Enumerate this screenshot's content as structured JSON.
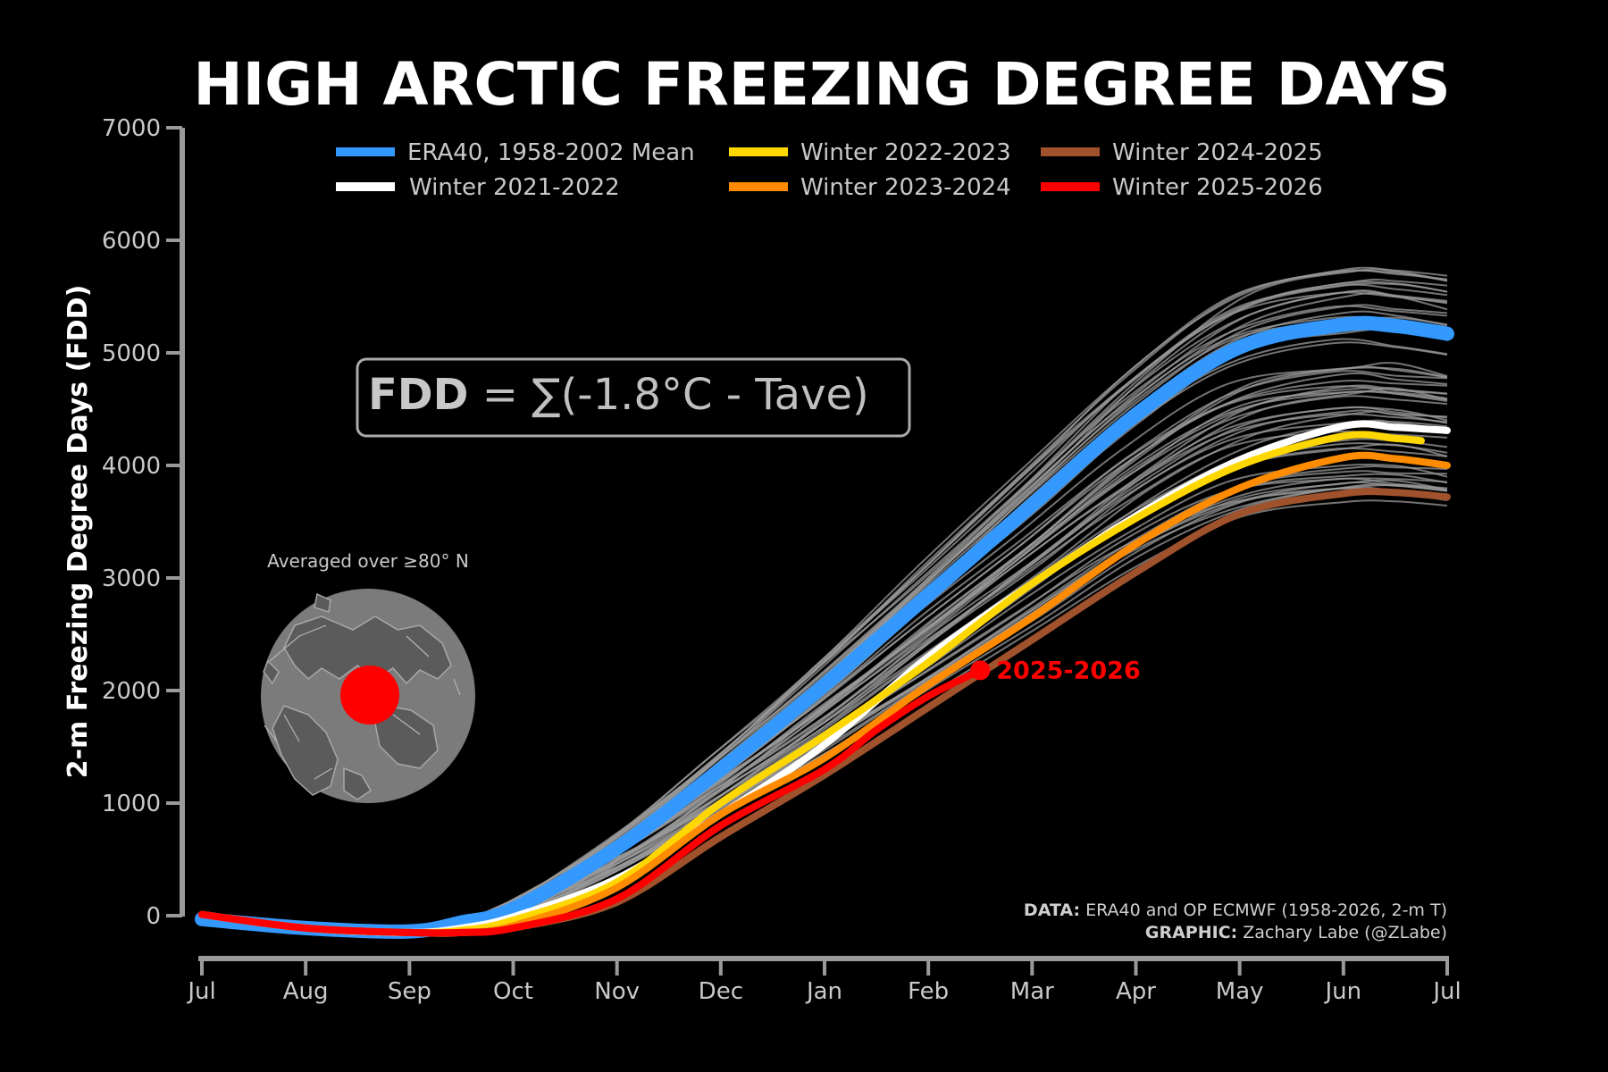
{
  "chart_data": {
    "type": "line",
    "title": "HIGH ARCTIC FREEZING DEGREE DAYS",
    "ylabel": "2-m Freezing Degree Days (FDD)",
    "xlabel": "",
    "x_ticks": [
      "Jul",
      "Aug",
      "Sep",
      "Oct",
      "Nov",
      "Dec",
      "Jan",
      "Feb",
      "Mar",
      "Apr",
      "May",
      "Jun",
      "Jul"
    ],
    "y_ticks": [
      0,
      1000,
      2000,
      3000,
      4000,
      5000,
      6000,
      7000
    ],
    "ylim": [
      -300,
      7000
    ],
    "xlim": [
      0,
      12
    ],
    "grid": false,
    "legend_position": "top",
    "formula": {
      "bold": "FDD",
      "rest": " = ∑(-1.8°C - Tave)"
    },
    "region_label": "Averaged over ≥80° N",
    "end_label": "2025-2026",
    "credits": {
      "data_label": "DATA:",
      "data_text": " ERA40 and OP ECMWF (1958-2026, 2-m T)",
      "graphic_label": "GRAPHIC:",
      "graphic_text": " Zachary Labe (@ZLabe)"
    },
    "background_years": {
      "color": "#9a9a9a",
      "count": 60,
      "final_min": 3550,
      "final_max": 5750
    },
    "series": [
      {
        "name": "ERA40, 1958-2002 Mean",
        "color": "#3399ff",
        "width": 16,
        "x": [
          0,
          1,
          2,
          2.5,
          3,
          4,
          5,
          6,
          7,
          8,
          9,
          10,
          11,
          11.5,
          12
        ],
        "y": [
          -30,
          -110,
          -140,
          -60,
          60,
          600,
          1300,
          2050,
          2850,
          3650,
          4450,
          5050,
          5250,
          5240,
          5170
        ]
      },
      {
        "name": "Winter 2021-2022",
        "color": "#ffffff",
        "width": 8,
        "x": [
          0,
          1,
          2,
          2.5,
          3,
          4,
          5,
          6,
          7,
          8,
          9,
          10,
          11,
          11.5,
          12
        ],
        "y": [
          10,
          -110,
          -150,
          -110,
          -10,
          330,
          900,
          1520,
          2300,
          2950,
          3550,
          4050,
          4350,
          4340,
          4310
        ]
      },
      {
        "name": "Winter 2022-2023",
        "color": "#ffd700",
        "width": 8,
        "x": [
          0,
          1,
          2,
          2.5,
          3,
          4,
          5,
          6,
          7,
          8,
          9,
          10,
          11,
          11.5,
          11.75
        ],
        "y": [
          10,
          -110,
          -150,
          -130,
          -40,
          300,
          1000,
          1600,
          2250,
          2950,
          3530,
          4000,
          4260,
          4240,
          4220
        ]
      },
      {
        "name": "Winter 2023-2024",
        "color": "#ff8c00",
        "width": 8,
        "x": [
          0,
          1,
          2,
          2.5,
          3,
          4,
          5,
          6,
          7,
          8,
          9,
          10,
          11,
          11.5,
          12
        ],
        "y": [
          10,
          -110,
          -150,
          -150,
          -90,
          250,
          900,
          1400,
          2050,
          2650,
          3300,
          3800,
          4070,
          4060,
          4000
        ]
      },
      {
        "name": "Winter 2024-2025",
        "color": "#a0522d",
        "width": 8,
        "x": [
          0,
          1,
          2,
          2.5,
          3,
          4,
          5,
          6,
          7,
          8,
          9,
          10,
          11,
          11.5,
          12
        ],
        "y": [
          10,
          -110,
          -150,
          -150,
          -110,
          120,
          700,
          1250,
          1850,
          2450,
          3050,
          3570,
          3750,
          3760,
          3720
        ]
      },
      {
        "name": "Winter 2025-2026",
        "color": "#ff0000",
        "width": 8,
        "x": [
          0,
          1,
          2,
          2.5,
          3,
          4,
          5,
          6,
          6.5,
          7,
          7.5
        ],
        "y": [
          10,
          -110,
          -150,
          -150,
          -110,
          150,
          800,
          1300,
          1650,
          1950,
          2180
        ]
      }
    ]
  }
}
